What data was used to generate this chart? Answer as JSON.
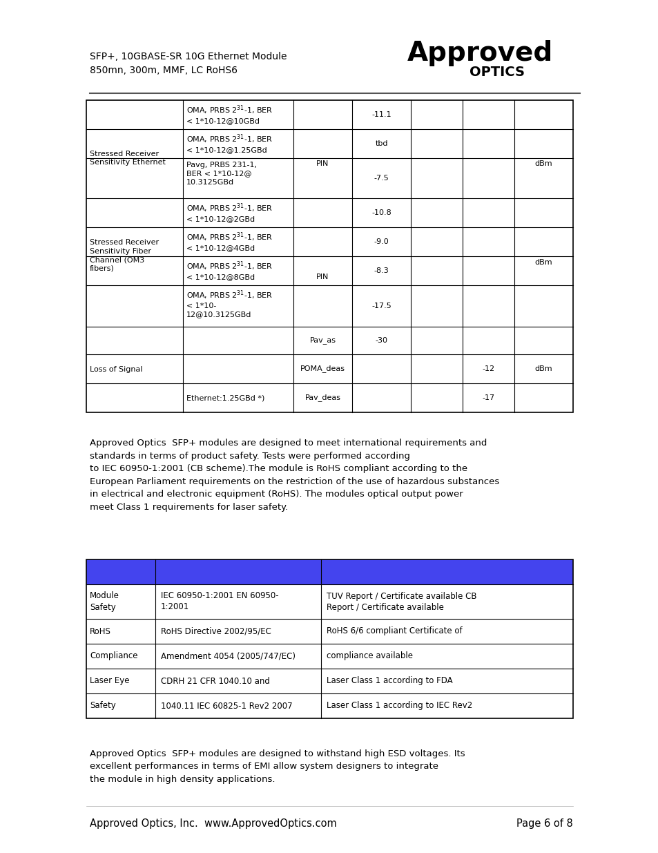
{
  "header_line1": "SFP+, 10GBASE-SR 10G Ethernet Module",
  "header_line2": "850mn, 300m, MMF, LC RoHS6",
  "para1": "Approved Optics  SFP+ modules are designed to meet international requirements and\nstandards in terms of product safety. Tests were performed according\nto IEC 60950-1:2001 (CB scheme).The module is RoHS compliant according to the\nEuropean Parliament requirements on the restriction of the use of hazardous substances\nin electrical and electronic equipment (RoHS). The modules optical output power\nmeet Class 1 requirements for laser safety.",
  "para2": "Approved Optics  SFP+ modules are designed to withstand high ESD voltages. Its\nexcellent performances in terms of EMI allow system designers to integrate\nthe module in high density applications.",
  "footer_left": "Approved Optics, Inc.  www.ApprovedOptics.com",
  "footer_right": "Page 6 of 8",
  "table2_blue": "#4444ee",
  "bg_color": "#ffffff"
}
